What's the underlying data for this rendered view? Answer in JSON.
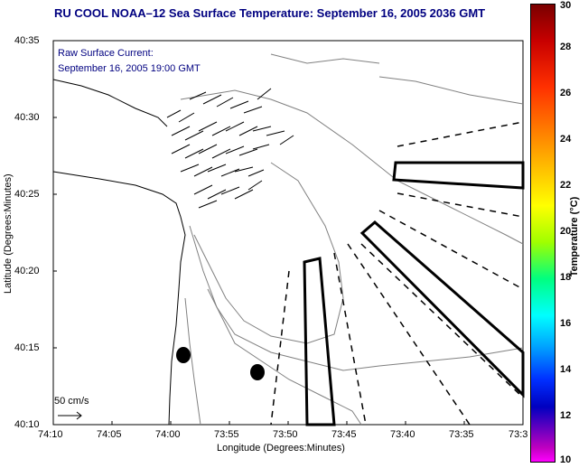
{
  "title": "RU COOL  NOAA–12  Sea Surface Temperature:  September 16, 2005 2036 GMT",
  "current_label": "Raw Surface Current:",
  "current_time": "September 16, 2005 19:00 GMT",
  "scale_label": "50 cm/s",
  "xlabel": "Longitude (Degrees:Minutes)",
  "ylabel": "Latitude (Degrees:Minutes)",
  "x_ticks": [
    "74:10",
    "74:05",
    "74:00",
    "73:55",
    "73:50",
    "73:45",
    "73:40",
    "73:35",
    "73:3"
  ],
  "y_ticks": [
    "40:35",
    "40:30",
    "40:25",
    "40:20",
    "40:15",
    "40:10"
  ],
  "colorbar": {
    "title": "Temperature (°C)",
    "ticks": [
      "30",
      "28",
      "26",
      "24",
      "22",
      "20",
      "18",
      "16",
      "14",
      "12",
      "10"
    ],
    "min": 10,
    "max": 30
  },
  "colors": {
    "title": "#000080",
    "lines": "#000000",
    "contours": "#808080"
  }
}
